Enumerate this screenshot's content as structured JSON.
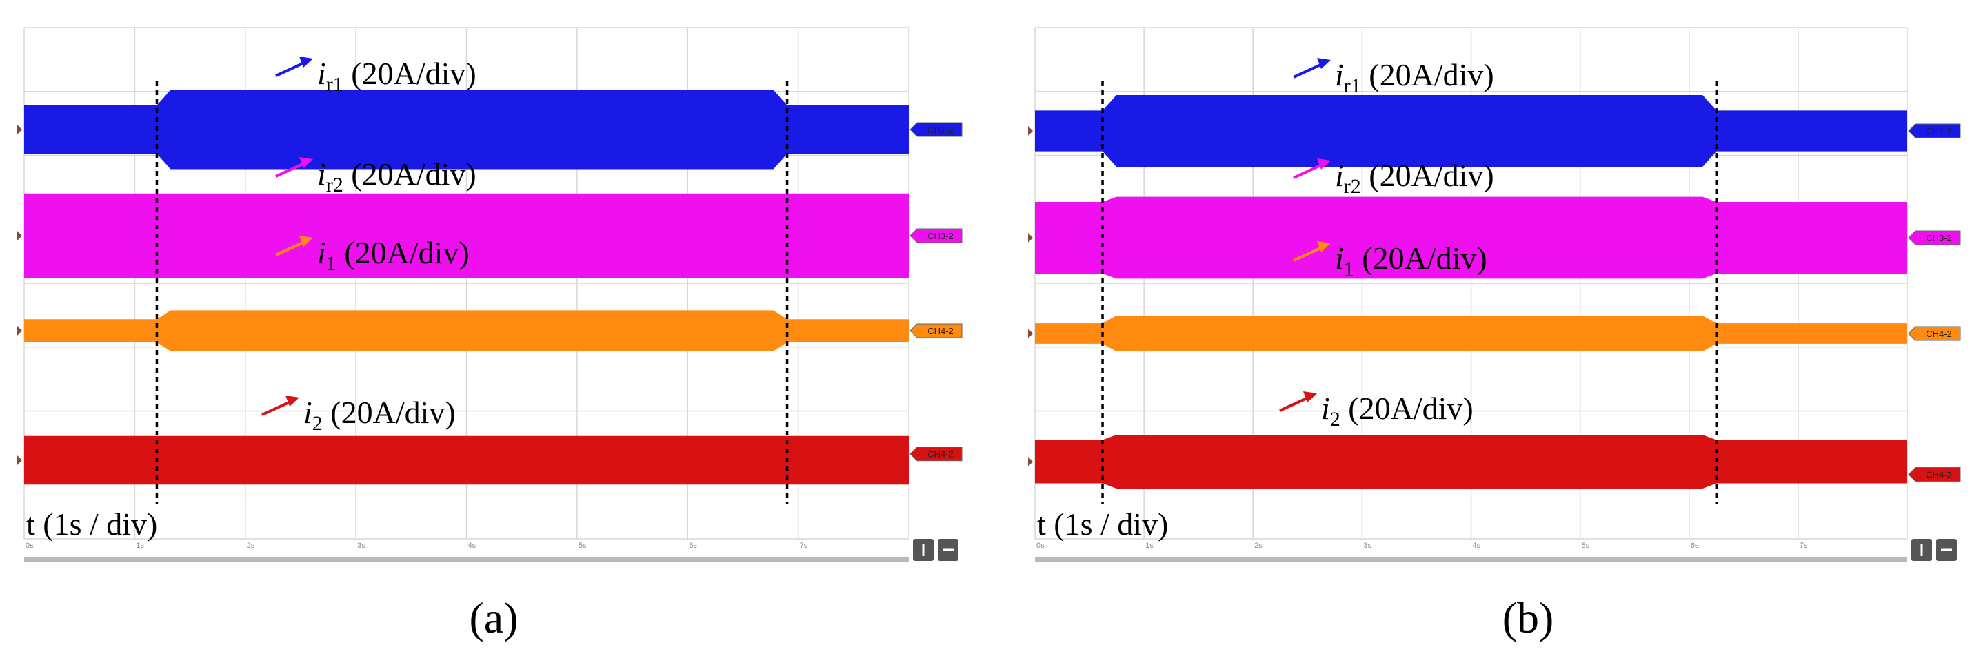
{
  "figure": {
    "panels": [
      {
        "id": "a",
        "label": "(a)",
        "grid_end_s": 8.0,
        "axis_unit": "t (1s / div)",
        "time_ticks": [
          "0s",
          "1s",
          "2s",
          "3s",
          "4s",
          "5s",
          "6s",
          "7s"
        ],
        "transition_times_s": [
          1.2,
          6.9
        ],
        "channels": [
          {
            "name": "i_r1",
            "symbol": "i",
            "sub": "r1",
            "scale": "(20A/div)",
            "tag": "CH1-2",
            "color": "#1a1ae6",
            "small_half_div": 0.38,
            "large_half_div": 0.62,
            "tag_div": 0.0
          },
          {
            "name": "i_r2",
            "symbol": "i",
            "sub": "r2",
            "scale": "(20A/div)",
            "tag": "CH3-2",
            "color": "#ee10ee",
            "small_half_div": 0.66,
            "large_half_div": 0.66,
            "tag_div": 0.0
          },
          {
            "name": "i_1",
            "symbol": "i",
            "sub": "1",
            "scale": "(20A/div)",
            "tag": "CH4-2",
            "color": "#ff8a10",
            "small_half_div": 0.18,
            "large_half_div": 0.32,
            "tag_div": 0.0
          },
          {
            "name": "i_2",
            "symbol": "i",
            "sub": "2",
            "scale": "(20A/div)",
            "tag": "CH4-2",
            "color": "#d81212",
            "small_half_div": 0.38,
            "large_half_div": 0.38,
            "tag_div": -0.1
          }
        ]
      },
      {
        "id": "b",
        "label": "(b)",
        "grid_end_s": 8.0,
        "axis_unit": "t (1s / div)",
        "time_ticks": [
          "0s",
          "1s",
          "2s",
          "3s",
          "4s",
          "5s",
          "6s",
          "7s"
        ],
        "transition_times_s": [
          0.62,
          6.25
        ],
        "channels": [
          {
            "name": "i_r1",
            "symbol": "i",
            "sub": "r1",
            "scale": "(20A/div)",
            "tag": "CH1-2",
            "color": "#1a1ae6",
            "small_half_div": 0.32,
            "large_half_div": 0.56,
            "tag_div": 0.0
          },
          {
            "name": "i_r2",
            "symbol": "i",
            "sub": "r2",
            "scale": "(20A/div)",
            "tag": "CH3-2",
            "color": "#ee10ee",
            "small_half_div": 0.56,
            "large_half_div": 0.64,
            "tag_div": 0.0
          },
          {
            "name": "i_1",
            "symbol": "i",
            "sub": "1",
            "scale": "(20A/div)",
            "tag": "CH4-2",
            "color": "#ff8a10",
            "small_half_div": 0.16,
            "large_half_div": 0.28,
            "tag_div": 0.0
          },
          {
            "name": "i_2",
            "symbol": "i",
            "sub": "2",
            "scale": "(20A/div)",
            "tag": "CH4-2",
            "color": "#d81212",
            "small_half_div": 0.34,
            "large_half_div": 0.42,
            "tag_div": 0.2
          }
        ]
      }
    ]
  }
}
